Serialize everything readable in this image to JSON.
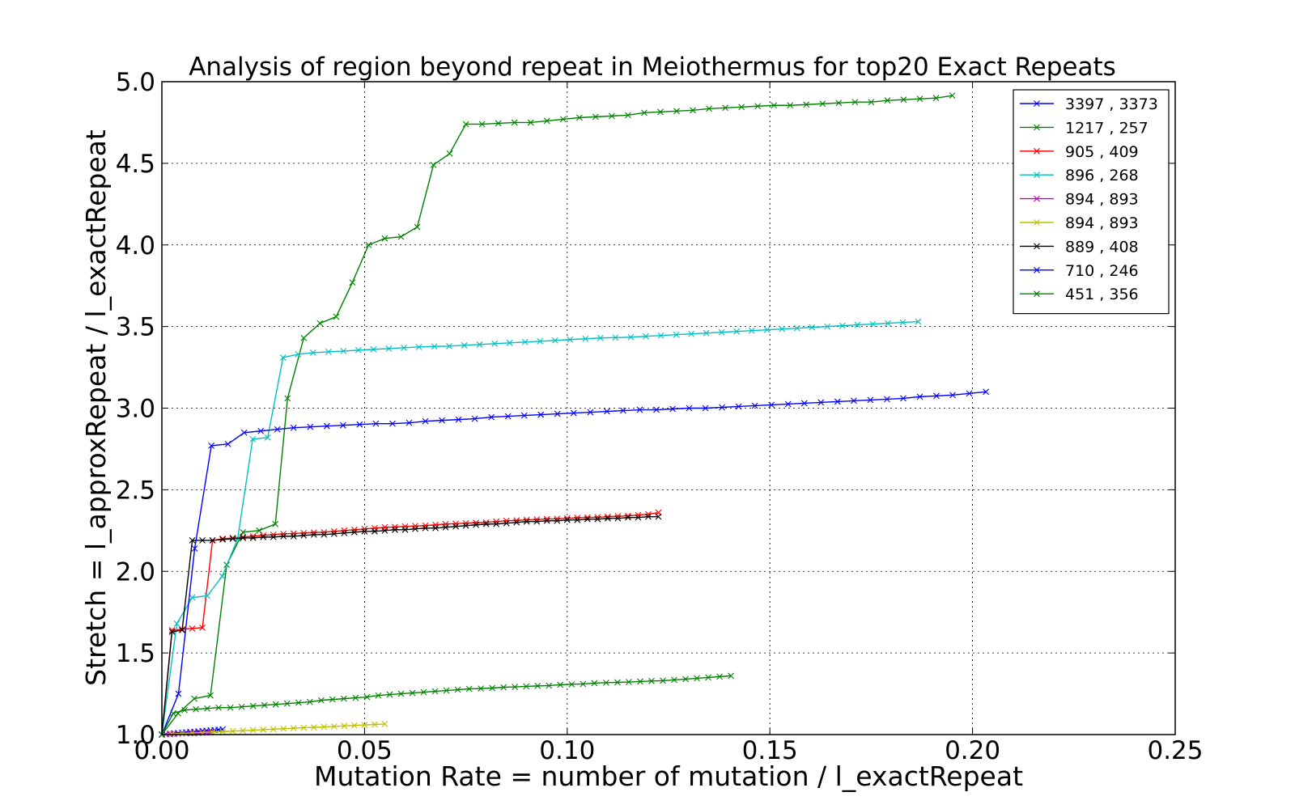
{
  "chart_data": {
    "type": "line",
    "title": "Analysis of region beyond repeat in Meiothermus for top20 Exact Repeats",
    "xlabel": "Mutation Rate = number of mutation / l_exactRepeat",
    "ylabel": "Stretch =  l_approxRepeat / l_exactRepeat",
    "xlim": [
      0.0,
      0.25
    ],
    "ylim": [
      1.0,
      5.0
    ],
    "xticks": [
      "0.00",
      "0.05",
      "0.10",
      "0.15",
      "0.20",
      "0.25"
    ],
    "yticks": [
      "1.0",
      "1.5",
      "2.0",
      "2.5",
      "3.0",
      "3.5",
      "4.0",
      "4.5",
      "5.0"
    ],
    "grid": true,
    "legend_position": "top-right",
    "marker": "x",
    "series": [
      {
        "name": "3397 , 3373",
        "color": "#0000ff",
        "x": [
          0.0,
          0.001,
          0.002,
          0.003,
          0.004,
          0.005,
          0.006,
          0.007,
          0.008,
          0.009,
          0.01,
          0.011,
          0.012,
          0.013,
          0.014,
          0.015
        ],
        "y": [
          1.0,
          1.003,
          1.005,
          1.008,
          1.01,
          1.012,
          1.014,
          1.016,
          1.018,
          1.02,
          1.022,
          1.024,
          1.026,
          1.028,
          1.03,
          1.032
        ]
      },
      {
        "name": "1217 , 257",
        "color": "#008000",
        "x": [
          0.0,
          0.004,
          0.008,
          0.012,
          0.016,
          0.02,
          0.024,
          0.028,
          0.031,
          0.035,
          0.039,
          0.043,
          0.047,
          0.051,
          0.055,
          0.059,
          0.063,
          0.067,
          0.071,
          0.075,
          0.079,
          0.083,
          0.087,
          0.091,
          0.095,
          0.099,
          0.103,
          0.107,
          0.111,
          0.115,
          0.119,
          0.123,
          0.127,
          0.131,
          0.135,
          0.139,
          0.143,
          0.147,
          0.151,
          0.155,
          0.159,
          0.163,
          0.167,
          0.171,
          0.175,
          0.179,
          0.183,
          0.187,
          0.191,
          0.195
        ],
        "y": [
          1.0,
          1.13,
          1.22,
          1.24,
          2.04,
          2.24,
          2.25,
          2.29,
          3.06,
          3.43,
          3.52,
          3.56,
          3.77,
          4.0,
          4.04,
          4.05,
          4.11,
          4.49,
          4.56,
          4.74,
          4.74,
          4.745,
          4.75,
          4.75,
          4.76,
          4.77,
          4.78,
          4.785,
          4.79,
          4.795,
          4.81,
          4.815,
          4.82,
          4.825,
          4.835,
          4.84,
          4.845,
          4.85,
          4.855,
          4.855,
          4.86,
          4.865,
          4.87,
          4.875,
          4.875,
          4.885,
          4.89,
          4.895,
          4.9,
          4.915
        ]
      },
      {
        "name": "905 , 409",
        "color": "#ff0000",
        "x": [
          0.0,
          0.0025,
          0.005,
          0.0075,
          0.01,
          0.0125,
          0.015,
          0.0175,
          0.02,
          0.0225,
          0.025,
          0.0275,
          0.03,
          0.0325,
          0.035,
          0.0375,
          0.04,
          0.0425,
          0.045,
          0.0475,
          0.05,
          0.0525,
          0.055,
          0.0575,
          0.06,
          0.0625,
          0.065,
          0.0675,
          0.07,
          0.0725,
          0.075,
          0.0775,
          0.08,
          0.0825,
          0.085,
          0.0875,
          0.09,
          0.0925,
          0.095,
          0.0975,
          0.1,
          0.1025,
          0.105,
          0.1075,
          0.11,
          0.1125,
          0.115,
          0.1175,
          0.12,
          0.1225
        ],
        "y": [
          1.0,
          1.64,
          1.645,
          1.65,
          1.655,
          2.19,
          2.2,
          2.205,
          2.21,
          2.215,
          2.22,
          2.225,
          2.23,
          2.232,
          2.235,
          2.238,
          2.24,
          2.245,
          2.25,
          2.255,
          2.26,
          2.265,
          2.27,
          2.272,
          2.275,
          2.278,
          2.28,
          2.285,
          2.29,
          2.292,
          2.295,
          2.298,
          2.3,
          2.305,
          2.31,
          2.312,
          2.315,
          2.318,
          2.32,
          2.322,
          2.325,
          2.328,
          2.33,
          2.332,
          2.335,
          2.338,
          2.34,
          2.345,
          2.35,
          2.36
        ]
      },
      {
        "name": "896 , 268",
        "color": "#00bfbf",
        "x": [
          0.0,
          0.0037,
          0.0075,
          0.0112,
          0.0149,
          0.0187,
          0.0224,
          0.0261,
          0.0299,
          0.0336,
          0.0373,
          0.0411,
          0.0448,
          0.0485,
          0.0522,
          0.056,
          0.0597,
          0.0634,
          0.0672,
          0.0709,
          0.0746,
          0.0784,
          0.0821,
          0.0858,
          0.0896,
          0.0933,
          0.097,
          0.1007,
          0.1045,
          0.1082,
          0.1119,
          0.1157,
          0.1194,
          0.1231,
          0.1269,
          0.1306,
          0.1343,
          0.1381,
          0.1418,
          0.1455,
          0.1493,
          0.153,
          0.1567,
          0.1604,
          0.1642,
          0.1679,
          0.1716,
          0.1754,
          0.1791,
          0.1828,
          0.1866
        ],
        "y": [
          1.0,
          1.68,
          1.84,
          1.85,
          1.97,
          2.2,
          2.81,
          2.82,
          3.31,
          3.33,
          3.34,
          3.345,
          3.35,
          3.355,
          3.36,
          3.365,
          3.37,
          3.375,
          3.378,
          3.38,
          3.385,
          3.39,
          3.395,
          3.4,
          3.405,
          3.41,
          3.415,
          3.42,
          3.425,
          3.43,
          3.432,
          3.435,
          3.44,
          3.445,
          3.45,
          3.455,
          3.46,
          3.465,
          3.47,
          3.475,
          3.48,
          3.485,
          3.49,
          3.495,
          3.5,
          3.505,
          3.51,
          3.515,
          3.52,
          3.525,
          3.53
        ]
      },
      {
        "name": "894 , 893",
        "color": "#bf00bf",
        "x": [
          0.0,
          0.001,
          0.002,
          0.003,
          0.004,
          0.005,
          0.006,
          0.007,
          0.008,
          0.009,
          0.01,
          0.011,
          0.012
        ],
        "y": [
          1.0,
          1.002,
          1.003,
          1.004,
          1.005,
          1.006,
          1.007,
          1.008,
          1.009,
          1.01,
          1.011,
          1.012,
          1.013
        ]
      },
      {
        "name": "894 , 893",
        "color": "#bfbf00",
        "x": [
          0.0,
          0.0025,
          0.005,
          0.0075,
          0.01,
          0.0125,
          0.015,
          0.0175,
          0.02,
          0.0225,
          0.025,
          0.0275,
          0.03,
          0.0325,
          0.035,
          0.0375,
          0.04,
          0.0425,
          0.045,
          0.0475,
          0.05,
          0.0525,
          0.055
        ],
        "y": [
          1.0,
          1.004,
          1.007,
          1.01,
          1.013,
          1.016,
          1.018,
          1.021,
          1.024,
          1.027,
          1.03,
          1.033,
          1.036,
          1.039,
          1.042,
          1.044,
          1.047,
          1.05,
          1.053,
          1.056,
          1.059,
          1.062,
          1.065
        ]
      },
      {
        "name": "889 , 408",
        "color": "#000000",
        "x": [
          0.0,
          0.0025,
          0.005,
          0.0075,
          0.01,
          0.0125,
          0.015,
          0.0175,
          0.02,
          0.0225,
          0.025,
          0.0275,
          0.03,
          0.0325,
          0.035,
          0.0375,
          0.04,
          0.0425,
          0.045,
          0.0475,
          0.05,
          0.0525,
          0.055,
          0.0575,
          0.06,
          0.0625,
          0.065,
          0.0675,
          0.07,
          0.0725,
          0.075,
          0.0775,
          0.08,
          0.0825,
          0.085,
          0.0875,
          0.09,
          0.0925,
          0.095,
          0.0975,
          0.1,
          0.1025,
          0.105,
          0.1075,
          0.11,
          0.1125,
          0.115,
          0.1175,
          0.12,
          0.1225
        ],
        "y": [
          1.0,
          1.63,
          1.64,
          2.19,
          2.19,
          2.19,
          2.195,
          2.2,
          2.205,
          2.205,
          2.21,
          2.21,
          2.215,
          2.215,
          2.22,
          2.225,
          2.225,
          2.23,
          2.235,
          2.24,
          2.245,
          2.245,
          2.25,
          2.255,
          2.255,
          2.26,
          2.265,
          2.265,
          2.27,
          2.275,
          2.28,
          2.285,
          2.29,
          2.29,
          2.295,
          2.3,
          2.305,
          2.305,
          2.31,
          2.31,
          2.315,
          2.315,
          2.32,
          2.32,
          2.325,
          2.325,
          2.33,
          2.33,
          2.335,
          2.335
        ]
      },
      {
        "name": "710 , 246",
        "color": "#0000ff",
        "x": [
          0.0,
          0.0041,
          0.0081,
          0.0122,
          0.0163,
          0.0203,
          0.0244,
          0.0285,
          0.0325,
          0.0366,
          0.0407,
          0.0447,
          0.0488,
          0.0528,
          0.0569,
          0.061,
          0.065,
          0.0691,
          0.0732,
          0.0772,
          0.0813,
          0.0854,
          0.0894,
          0.0935,
          0.0976,
          0.1016,
          0.1057,
          0.1098,
          0.1138,
          0.1179,
          0.122,
          0.126,
          0.1301,
          0.1341,
          0.1382,
          0.1423,
          0.1463,
          0.1504,
          0.1545,
          0.1585,
          0.1626,
          0.1667,
          0.1707,
          0.1748,
          0.1789,
          0.1829,
          0.187,
          0.1911,
          0.1951,
          0.1992,
          0.2033
        ],
        "y": [
          1.0,
          1.25,
          2.14,
          2.77,
          2.78,
          2.85,
          2.86,
          2.87,
          2.88,
          2.885,
          2.89,
          2.895,
          2.9,
          2.905,
          2.905,
          2.91,
          2.92,
          2.925,
          2.93,
          2.935,
          2.945,
          2.95,
          2.955,
          2.96,
          2.965,
          2.97,
          2.975,
          2.98,
          2.985,
          2.99,
          2.99,
          2.995,
          3.0,
          3.0,
          3.005,
          3.01,
          3.015,
          3.02,
          3.025,
          3.03,
          3.035,
          3.04,
          3.045,
          3.05,
          3.055,
          3.06,
          3.07,
          3.075,
          3.08,
          3.09,
          3.1
        ]
      },
      {
        "name": "451 , 356",
        "color": "#008000",
        "x": [
          0.0,
          0.0028,
          0.0056,
          0.0084,
          0.0112,
          0.014,
          0.0169,
          0.0197,
          0.0225,
          0.0253,
          0.0281,
          0.0309,
          0.0337,
          0.0365,
          0.0393,
          0.0421,
          0.0449,
          0.0478,
          0.0506,
          0.0534,
          0.0562,
          0.059,
          0.0618,
          0.0646,
          0.0674,
          0.0702,
          0.073,
          0.0758,
          0.0787,
          0.0815,
          0.0843,
          0.0871,
          0.0899,
          0.0927,
          0.0955,
          0.0983,
          0.1011,
          0.1039,
          0.1067,
          0.1096,
          0.1124,
          0.1152,
          0.118,
          0.1208,
          0.1236,
          0.1264,
          0.1292,
          0.132,
          0.1348,
          0.1376,
          0.1404
        ],
        "y": [
          1.0,
          1.13,
          1.15,
          1.155,
          1.16,
          1.165,
          1.165,
          1.17,
          1.175,
          1.18,
          1.185,
          1.19,
          1.195,
          1.2,
          1.21,
          1.215,
          1.22,
          1.225,
          1.23,
          1.24,
          1.245,
          1.25,
          1.255,
          1.26,
          1.265,
          1.27,
          1.275,
          1.28,
          1.282,
          1.285,
          1.29,
          1.292,
          1.295,
          1.298,
          1.3,
          1.305,
          1.308,
          1.31,
          1.315,
          1.318,
          1.32,
          1.322,
          1.325,
          1.328,
          1.33,
          1.335,
          1.34,
          1.345,
          1.35,
          1.355,
          1.36
        ]
      }
    ]
  }
}
